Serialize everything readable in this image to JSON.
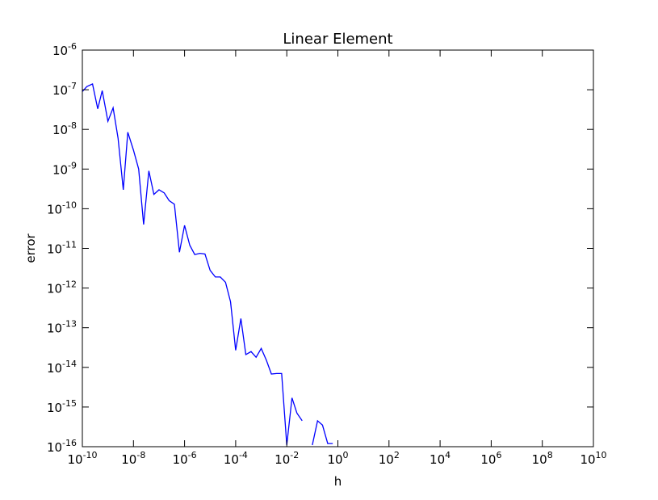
{
  "chart_data": {
    "type": "line",
    "title": "Linear Element",
    "xlabel": "h",
    "ylabel": "error",
    "xscale": "log",
    "yscale": "log",
    "xlim": [
      1e-10,
      10000000000.0
    ],
    "ylim": [
      1e-16,
      1e-06
    ],
    "grid": false,
    "legend": "none",
    "line_color": "#0000ff",
    "x_ticks": [
      {
        "base": "10",
        "exp": "-10",
        "value": 1e-10
      },
      {
        "base": "10",
        "exp": "-8",
        "value": 1e-08
      },
      {
        "base": "10",
        "exp": "-6",
        "value": 1e-06
      },
      {
        "base": "10",
        "exp": "-4",
        "value": 0.0001
      },
      {
        "base": "10",
        "exp": "-2",
        "value": 0.01
      },
      {
        "base": "10",
        "exp": "0",
        "value": 1
      },
      {
        "base": "10",
        "exp": "2",
        "value": 100.0
      },
      {
        "base": "10",
        "exp": "4",
        "value": 10000.0
      },
      {
        "base": "10",
        "exp": "6",
        "value": 1000000.0
      },
      {
        "base": "10",
        "exp": "8",
        "value": 100000000.0
      },
      {
        "base": "10",
        "exp": "10",
        "value": 10000000000.0
      }
    ],
    "y_ticks": [
      {
        "base": "10",
        "exp": "-6",
        "value": 1e-06
      },
      {
        "base": "10",
        "exp": "-7",
        "value": 1e-07
      },
      {
        "base": "10",
        "exp": "-8",
        "value": 1e-08
      },
      {
        "base": "10",
        "exp": "-9",
        "value": 1e-09
      },
      {
        "base": "10",
        "exp": "-10",
        "value": 1e-10
      },
      {
        "base": "10",
        "exp": "-11",
        "value": 1e-11
      },
      {
        "base": "10",
        "exp": "-12",
        "value": 1e-12
      },
      {
        "base": "10",
        "exp": "-13",
        "value": 1e-13
      },
      {
        "base": "10",
        "exp": "-14",
        "value": 1e-14
      },
      {
        "base": "10",
        "exp": "-15",
        "value": 1e-15
      },
      {
        "base": "10",
        "exp": "-16",
        "value": 1e-16
      }
    ],
    "series": [
      {
        "segments": [
          {
            "x": [
              1e-10,
              1.5e-10,
              2.5e-10,
              4e-10,
              6e-10,
              1e-09,
              1.6e-09,
              2.5e-09,
              4e-09,
              6e-09,
              1e-08,
              1.6e-08,
              2.5e-08,
              4e-08,
              6.3e-08,
              1e-07,
              1.6e-07,
              2.5e-07,
              4e-07,
              6.3e-07,
              1e-06,
              1.6e-06,
              2.5e-06,
              4e-06,
              6.3e-06,
              1e-05,
              1.6e-05,
              2.5e-05,
              4e-05,
              6.3e-05,
              0.0001,
              0.00016,
              0.00025,
              0.0004,
              0.00063,
              0.001,
              0.0016,
              0.0025,
              0.004,
              0.0063,
              0.01,
              0.016,
              0.025,
              0.04
            ],
            "y": [
              9e-08,
              1.2e-07,
              1.4e-07,
              3.3e-08,
              9.5e-08,
              1.6e-08,
              3.5e-08,
              6e-09,
              3e-10,
              8.5e-09,
              3e-09,
              1e-09,
              4e-11,
              9e-10,
              2.3e-10,
              3e-10,
              2.5e-10,
              1.6e-10,
              1.3e-10,
              8e-12,
              3.8e-11,
              1.2e-11,
              7e-12,
              7.5e-12,
              7.2e-12,
              2.8e-12,
              1.9e-12,
              1.9e-12,
              1.4e-12,
              4.5e-13,
              2.7e-14,
              1.7e-13,
              2.1e-14,
              2.5e-14,
              1.8e-14,
              3e-14,
              1.5e-14,
              6.8e-15,
              7e-15,
              7e-15,
              1.1e-16,
              1.7e-15,
              7e-16,
              4.5e-16
            ]
          },
          {
            "x": [
              0.1,
              0.16,
              0.25,
              0.4,
              0.63
            ],
            "y": [
              1.1e-16,
              4.5e-16,
              3.5e-16,
              1.2e-16,
              1.2e-16
            ]
          }
        ]
      }
    ]
  }
}
